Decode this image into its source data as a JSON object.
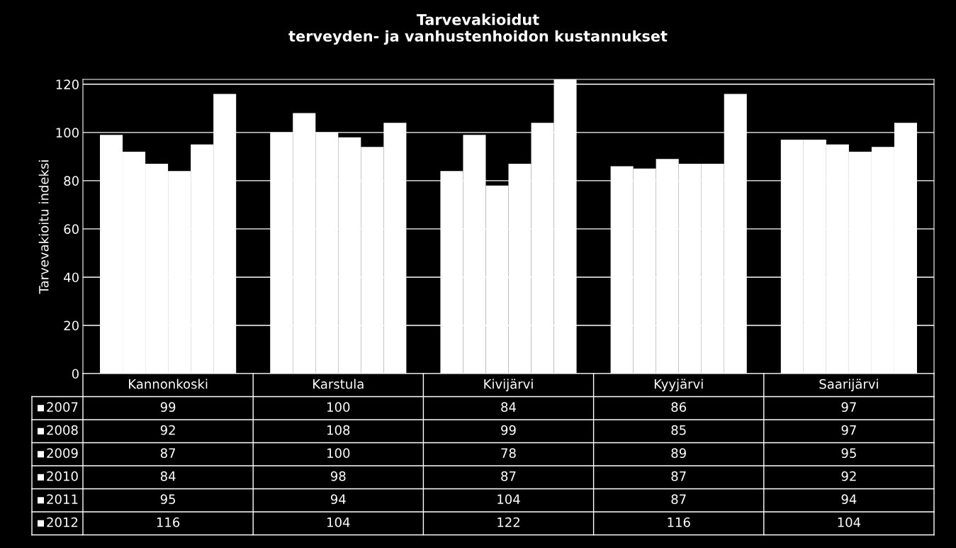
{
  "chart_data": {
    "type": "bar",
    "title": "Tarvevakioidut\nterveyden- ja vanhustenhoidon kustannukset",
    "ylabel": "Tarvevakioitu indeksi",
    "categories": [
      "Kannonkoski",
      "Karstula",
      "Kivijärvi",
      "Kyyjärvi",
      "Saarijärvi"
    ],
    "series": [
      {
        "name": "2007",
        "color": "#ffffff",
        "values": [
          99,
          100,
          84,
          86,
          97
        ]
      },
      {
        "name": "2008",
        "color": "#ffffff",
        "values": [
          92,
          108,
          99,
          85,
          97
        ]
      },
      {
        "name": "2009",
        "color": "#ffffff",
        "values": [
          87,
          100,
          78,
          89,
          95
        ]
      },
      {
        "name": "2010",
        "color": "#ffffff",
        "values": [
          84,
          98,
          87,
          87,
          92
        ]
      },
      {
        "name": "2011",
        "color": "#ffffff",
        "values": [
          95,
          94,
          104,
          87,
          94
        ]
      },
      {
        "name": "2012",
        "color": "#ffffff",
        "values": [
          116,
          104,
          122,
          116,
          104
        ]
      }
    ],
    "ylim": [
      0,
      122
    ],
    "yticks": [
      0,
      20,
      40,
      60,
      80,
      100,
      120
    ],
    "grid": "y",
    "legend": "bottom",
    "data_labels": true
  }
}
